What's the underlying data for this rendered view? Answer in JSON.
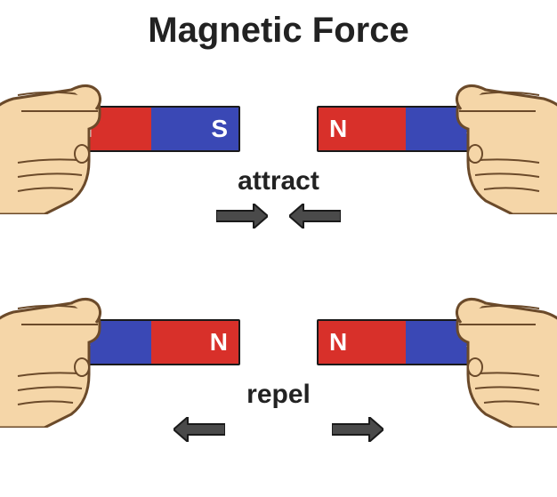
{
  "title": "Magnetic Force",
  "colors": {
    "north": "#d8302a",
    "south": "#3a48b5",
    "arrow_fill": "#4a4a4a",
    "arrow_stroke": "#1a1a1a",
    "skin": "#f5d6a8",
    "skin_line": "#6b4a2a",
    "title_color": "#222222",
    "label_color": "#222222"
  },
  "pole_labels": {
    "north": "N",
    "south": "S"
  },
  "scenarios": [
    {
      "id": "attract",
      "label": "attract",
      "arrow_gap": 24,
      "arrows": [
        {
          "dir": "right",
          "length": 58
        },
        {
          "dir": "left",
          "length": 58
        }
      ],
      "left_magnet": {
        "poles": [
          "north",
          "south"
        ],
        "letter_align": [
          "start",
          "end"
        ]
      },
      "right_magnet": {
        "poles": [
          "north",
          "south"
        ],
        "letter_align": [
          "start",
          "end"
        ]
      }
    },
    {
      "id": "repel",
      "label": "repel",
      "arrow_gap": 120,
      "arrows": [
        {
          "dir": "left",
          "length": 58
        },
        {
          "dir": "right",
          "length": 58
        }
      ],
      "left_magnet": {
        "poles": [
          "south",
          "north"
        ],
        "letter_align": [
          "start",
          "end"
        ]
      },
      "right_magnet": {
        "poles": [
          "north",
          "south"
        ],
        "letter_align": [
          "start",
          "end"
        ]
      }
    }
  ]
}
